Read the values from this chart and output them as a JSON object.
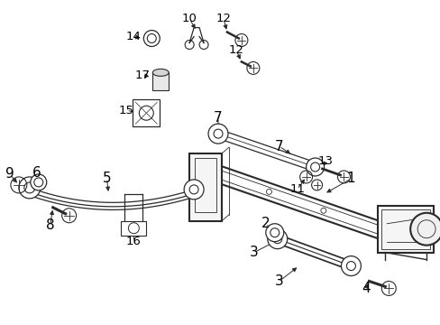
{
  "background": "#ffffff",
  "line_color": "#2a2a2a",
  "text_color": "#000000",
  "fig_width": 4.89,
  "fig_height": 3.6,
  "dpi": 100
}
